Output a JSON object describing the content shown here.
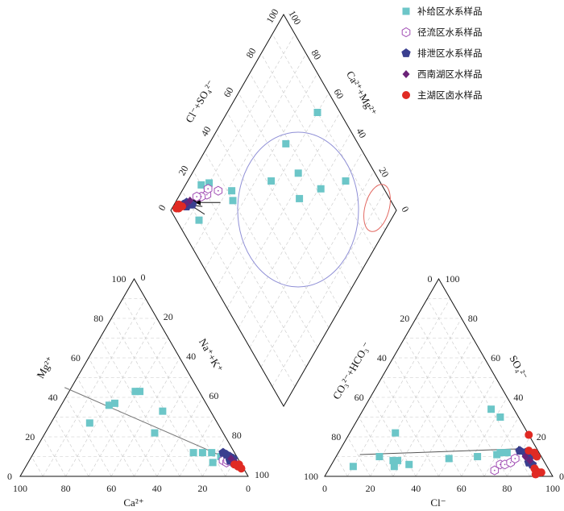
{
  "chart_data": {
    "type": "piper",
    "legend": [
      {
        "key": "recharge",
        "label": "补给区水系样品",
        "color": "#6cc6c8",
        "marker": "square"
      },
      {
        "key": "runoff",
        "label": "径流区水系样品",
        "color": "#a24fb5",
        "marker": "hexagon-open"
      },
      {
        "key": "discharge",
        "label": "排泄区水系样品",
        "color": "#3a3f8f",
        "marker": "pentagon"
      },
      {
        "key": "xinanhu",
        "label": "西南湖区水样品",
        "color": "#6b2378",
        "marker": "diamond"
      },
      {
        "key": "zhuhu",
        "label": "主湖区卤水样品",
        "color": "#e02a23",
        "marker": "circle"
      }
    ],
    "axes": {
      "cation": {
        "left_label": "Mg²⁺",
        "right_label": "Na⁺+K⁺",
        "bottom_label": "Ca²⁺",
        "left_ticks": [
          "0",
          "20",
          "40",
          "60",
          "80",
          "100"
        ],
        "right_ticks": [
          "0",
          "20",
          "40",
          "60",
          "80",
          "100"
        ],
        "bottom_ticks": [
          "100",
          "80",
          "60",
          "40",
          "20",
          "0"
        ]
      },
      "anion": {
        "left_label": "CO₃²⁻+HCO₃⁻",
        "right_label": "SO₄²⁻",
        "bottom_label": "Cl⁻",
        "left_ticks": [
          "100",
          "80",
          "60",
          "40",
          "20",
          "0"
        ],
        "right_ticks": [
          "0",
          "20",
          "40",
          "60",
          "80",
          "100"
        ],
        "bottom_ticks": [
          "0",
          "20",
          "40",
          "60",
          "80",
          "100"
        ]
      },
      "diamond": {
        "left_label": "Cl⁻+SO₄²⁻",
        "right_label": "Ca²⁺+Mg²⁺",
        "left_ticks": [
          "0",
          "20",
          "40",
          "60",
          "80",
          "100"
        ],
        "right_ticks": [
          "100",
          "80",
          "60",
          "40",
          "20",
          "0"
        ]
      }
    },
    "cation_points": {
      "recharge": [
        [
          56,
          27
        ],
        [
          43,
          36
        ],
        [
          40,
          37
        ],
        [
          28,
          43
        ],
        [
          26,
          43
        ],
        [
          30,
          22
        ],
        [
          21,
          33
        ],
        [
          18,
          12
        ],
        [
          14,
          12
        ],
        [
          10,
          12
        ],
        [
          12,
          7
        ],
        [
          7,
          10
        ]
      ],
      "runoff": [
        [
          7,
          8
        ],
        [
          6,
          7
        ],
        [
          5,
          8
        ]
      ],
      "discharge": [
        [
          5,
          12
        ],
        [
          4,
          11
        ],
        [
          3,
          10
        ],
        [
          2,
          9
        ],
        [
          4,
          8
        ],
        [
          3,
          7
        ]
      ],
      "xinanhu": [
        [
          3,
          9
        ],
        [
          2,
          7
        ]
      ],
      "zhuhu": [
        [
          1,
          6
        ],
        [
          2,
          5
        ],
        [
          1,
          4
        ],
        [
          3,
          6
        ]
      ]
    },
    "anion_points": {
      "recharge": [
        [
          10,
          5
        ],
        [
          28,
          5
        ],
        [
          34,
          6
        ],
        [
          19,
          10
        ],
        [
          26,
          8
        ],
        [
          50,
          9
        ],
        [
          62,
          10
        ],
        [
          70,
          11
        ],
        [
          71,
          12
        ],
        [
          74,
          12
        ],
        [
          28,
          8
        ],
        [
          20,
          22
        ],
        [
          62,
          30
        ],
        [
          56,
          34
        ]
      ],
      "runoff": [
        [
          74,
          6
        ],
        [
          76,
          6
        ],
        [
          78,
          7
        ],
        [
          73,
          3
        ],
        [
          79,
          9
        ]
      ],
      "discharge": [
        [
          79,
          13
        ],
        [
          82,
          12
        ],
        [
          85,
          10
        ],
        [
          86,
          7
        ],
        [
          88,
          6
        ]
      ],
      "xinanhu": [
        [
          83,
          10
        ],
        [
          86,
          8
        ]
      ],
      "zhuhu": [
        [
          79,
          21
        ],
        [
          83,
          13
        ],
        [
          86,
          12
        ],
        [
          88,
          10
        ],
        [
          90,
          4
        ],
        [
          91,
          3
        ],
        [
          93,
          2
        ],
        [
          94,
          2
        ],
        [
          92,
          1
        ]
      ]
    },
    "diamond_points": {
      "recharge": [
        [
          30,
          15
        ],
        [
          39,
          28
        ],
        [
          46,
          40
        ],
        [
          66,
          32
        ],
        [
          63,
          48
        ],
        [
          53,
          34
        ],
        [
          60,
          10
        ],
        [
          75,
          70
        ],
        [
          85,
          90
        ],
        [
          90,
          76
        ],
        [
          93,
          80
        ],
        [
          78,
          68
        ]
      ],
      "runoff": [
        [
          88,
          80
        ],
        [
          90,
          83
        ],
        [
          92,
          85
        ],
        [
          89,
          78
        ],
        [
          84,
          74
        ]
      ],
      "discharge": [
        [
          93,
          90
        ],
        [
          94,
          92
        ],
        [
          95,
          91
        ],
        [
          96,
          93
        ],
        [
          92,
          89
        ]
      ],
      "xinanhu": [
        [
          94,
          89
        ],
        [
          95,
          92
        ]
      ],
      "zhuhu": [
        [
          97,
          96
        ],
        [
          98,
          95
        ],
        [
          96,
          94
        ],
        [
          98,
          97
        ]
      ]
    },
    "ellipses": [
      {
        "name": "recharge-zone",
        "color": "#8f8fd6"
      },
      {
        "name": "discharge-zone",
        "color": "#e36a63"
      }
    ],
    "trend_arrows": [
      {
        "name": "cation-trend",
        "plot": "cation",
        "from": [
          58,
          45
        ],
        "to": [
          6,
          10
        ]
      },
      {
        "name": "anion-trend",
        "plot": "anion",
        "from": [
          10,
          11
        ],
        "to": [
          80,
          14
        ]
      }
    ],
    "diamond_arrows": [
      {
        "name": "diamond-arrow-1",
        "from": [
          84,
          86
        ],
        "to": [
          95,
          91
        ]
      },
      {
        "name": "diamond-arrow-2",
        "from": [
          87,
          85
        ],
        "to": [
          95,
          92
        ]
      },
      {
        "name": "diamond-arrow-3",
        "from": [
          88,
          80
        ],
        "to": [
          93,
          89
        ]
      },
      {
        "name": "diamond-arrow-4",
        "from": [
          80,
          76
        ],
        "to": [
          91,
          87
        ]
      }
    ]
  }
}
